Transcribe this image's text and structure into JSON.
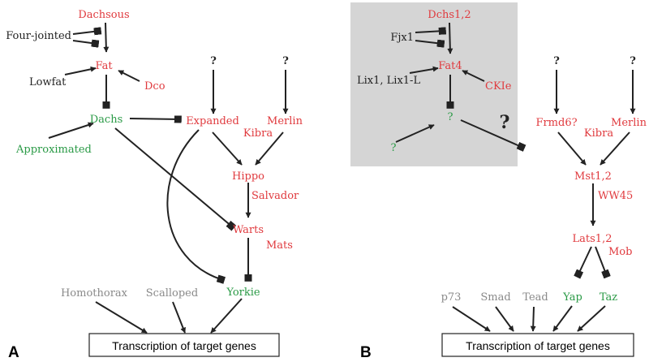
{
  "colors": {
    "red": "#e03a3e",
    "green": "#2a9a46",
    "grey": "#8a8a8a",
    "black": "#222222",
    "shade": "#d5d5d5"
  },
  "panel_a": {
    "letter": "A",
    "box": "Transcription of target genes",
    "unknown": "?",
    "nodes": {
      "dachsous": "Dachsous",
      "four_jointed": "Four-jointed",
      "fat": "Fat",
      "lowfat": "Lowfat",
      "dco": "Dco",
      "dachs": "Dachs",
      "approximated": "Approximated",
      "expanded": "Expanded",
      "merlin": "Merlin",
      "kibra": "Kibra",
      "hippo": "Hippo",
      "salvador": "Salvador",
      "warts": "Warts",
      "mats": "Mats",
      "yorkie": "Yorkie",
      "homothorax": "Homothorax",
      "scalloped": "Scalloped"
    }
  },
  "panel_b": {
    "letter": "B",
    "box": "Transcription of target genes",
    "unknown": "?",
    "nodes": {
      "dchs": "Dchs1,2",
      "fjx1": "Fjx1",
      "fat4": "Fat4",
      "lix": "Lix1, Lix1-L",
      "ckie": "CKIe",
      "frmd6": "Frmd6?",
      "kibra": "Kibra",
      "merlin": "Merlin",
      "mst": "Mst1,2",
      "ww45": "WW45",
      "lats": "Lats1,2",
      "mob": "Mob",
      "p73": "p73",
      "smad": "Smad",
      "tead": "Tead",
      "yap": "Yap",
      "taz": "Taz"
    }
  }
}
